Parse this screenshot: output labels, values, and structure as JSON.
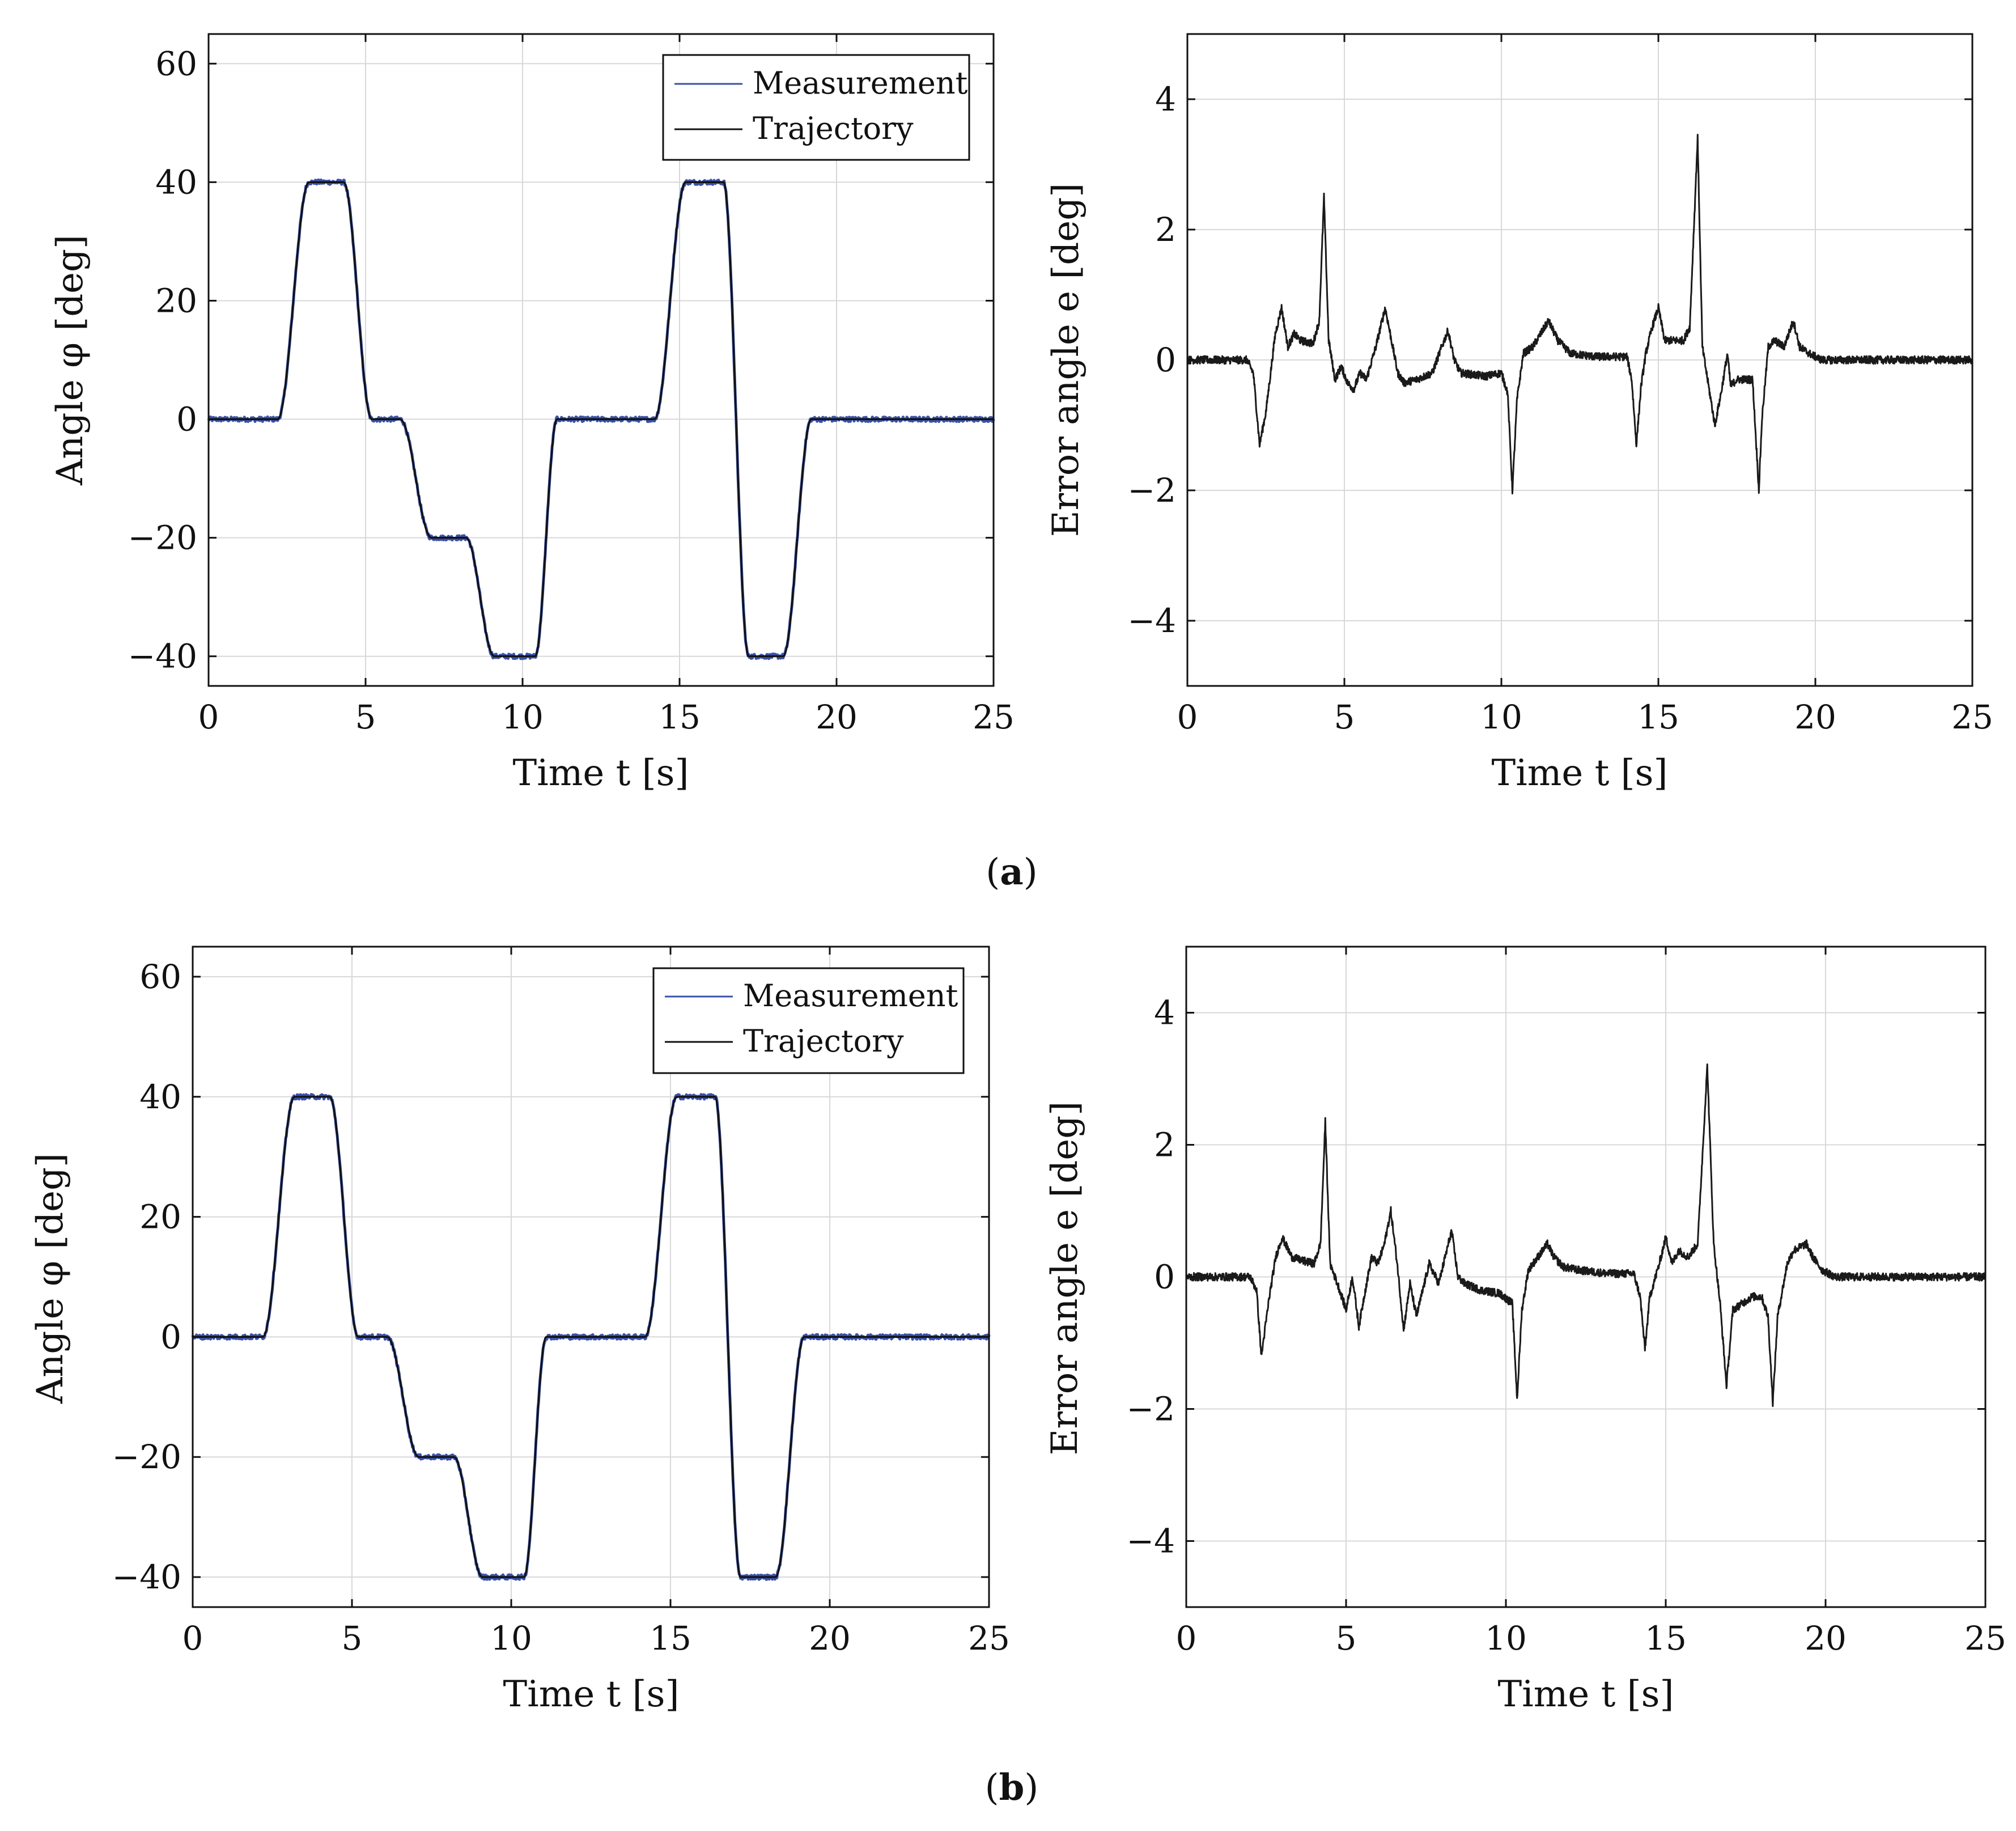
{
  "figure": {
    "caption_a": "a",
    "caption_b": "b",
    "colors": {
      "measurement": "#3a52a8",
      "trajectory": "#111111",
      "error": "#1a1a1a",
      "axes": "#111111",
      "grid": "#d8d8d8"
    }
  },
  "chart_data": [
    {
      "id": "a-angle",
      "type": "line",
      "panel": "a",
      "xlabel": "Time t [s]",
      "ylabel": "Angle φ [deg]",
      "xlim": [
        0,
        25
      ],
      "ylim": [
        -45,
        65
      ],
      "xticks": [
        0,
        5,
        10,
        15,
        20,
        25
      ],
      "yticks": [
        -40,
        -20,
        0,
        20,
        40,
        60
      ],
      "xtick_labels": [
        "0",
        "5",
        "10",
        "15",
        "20",
        "25"
      ],
      "ytick_labels": [
        "−40",
        "−20",
        "0",
        "20",
        "40",
        "60"
      ],
      "grid": true,
      "legend": {
        "position": "top-right",
        "entries": [
          "Measurement",
          "Trajectory"
        ]
      },
      "series": [
        {
          "name": "Trajectory",
          "x": [
            0,
            2.2,
            3.2,
            4.3,
            5.2,
            6.1,
            7.1,
            8.2,
            9.1,
            10.4,
            11.1,
            14.2,
            15.2,
            16.4,
            17.2,
            18.3,
            19.2,
            25
          ],
          "y": [
            0,
            0,
            40,
            40,
            0,
            0,
            -20,
            -20,
            -40,
            -40,
            0,
            0,
            40,
            40,
            -40,
            -40,
            0,
            0
          ]
        },
        {
          "name": "Measurement",
          "x": [
            0,
            2.2,
            3.2,
            4.3,
            5.2,
            6.1,
            7.1,
            8.2,
            9.1,
            10.4,
            11.1,
            14.2,
            15.2,
            16.4,
            17.2,
            18.3,
            19.2,
            25
          ],
          "y": [
            0,
            0,
            40,
            40,
            0,
            0,
            -20,
            -20,
            -40,
            -40,
            0,
            0,
            40,
            40,
            -40,
            -40,
            0,
            0
          ]
        }
      ]
    },
    {
      "id": "a-error",
      "type": "line",
      "panel": "a",
      "xlabel": "Time t [s]",
      "ylabel": "Error angle e [deg]",
      "xlim": [
        0,
        25
      ],
      "ylim": [
        -5,
        5
      ],
      "xticks": [
        0,
        5,
        10,
        15,
        20,
        25
      ],
      "yticks": [
        -4,
        -2,
        0,
        2,
        4
      ],
      "xtick_labels": [
        "0",
        "5",
        "10",
        "15",
        "20",
        "25"
      ],
      "ytick_labels": [
        "−4",
        "−2",
        "0",
        "2",
        "4"
      ],
      "grid": true,
      "series": [
        {
          "name": "Error",
          "x": [
            0,
            1.9,
            2.1,
            2.3,
            2.5,
            2.8,
            3.0,
            3.2,
            3.4,
            3.6,
            4.0,
            4.2,
            4.35,
            4.5,
            4.7,
            4.9,
            5.1,
            5.3,
            5.5,
            5.7,
            6.0,
            6.3,
            6.5,
            6.7,
            6.9,
            7.3,
            7.8,
            8.1,
            8.3,
            8.5,
            8.7,
            9.5,
            10.0,
            10.2,
            10.35,
            10.5,
            10.7,
            11.0,
            11.5,
            11.8,
            12.2,
            13.0,
            14.0,
            14.15,
            14.3,
            14.45,
            14.6,
            14.8,
            15.0,
            15.2,
            15.4,
            15.8,
            16.0,
            16.25,
            16.4,
            16.6,
            16.8,
            17.0,
            17.2,
            17.3,
            17.5,
            17.8,
            18.0,
            18.2,
            18.3,
            18.5,
            18.7,
            19.0,
            19.3,
            19.5,
            19.8,
            20.2,
            25
          ],
          "y": [
            0,
            0,
            -0.2,
            -1.3,
            -0.8,
            0.4,
            0.8,
            0.2,
            0.4,
            0.3,
            0.25,
            0.6,
            2.5,
            0.3,
            -0.3,
            -0.1,
            -0.35,
            -0.45,
            -0.2,
            -0.3,
            0.2,
            0.8,
            0.3,
            -0.2,
            -0.35,
            -0.3,
            -0.2,
            0.2,
            0.45,
            0.0,
            -0.2,
            -0.25,
            -0.2,
            -0.5,
            -2.0,
            -0.6,
            0.1,
            0.2,
            0.6,
            0.3,
            0.1,
            0.05,
            0.05,
            -0.3,
            -1.3,
            -0.4,
            0.1,
            0.5,
            0.8,
            0.3,
            0.3,
            0.3,
            0.5,
            3.4,
            0.2,
            -0.4,
            -1.0,
            -0.5,
            0.1,
            -0.4,
            -0.3,
            -0.3,
            -0.3,
            -2.0,
            -0.9,
            0.2,
            0.3,
            0.2,
            0.6,
            0.2,
            0.1,
            0,
            0
          ]
        }
      ]
    },
    {
      "id": "b-angle",
      "type": "line",
      "panel": "b",
      "xlabel": "Time t [s]",
      "ylabel": "Angle φ [deg]",
      "xlim": [
        0,
        25
      ],
      "ylim": [
        -45,
        65
      ],
      "xticks": [
        0,
        5,
        10,
        15,
        20,
        25
      ],
      "yticks": [
        -40,
        -20,
        0,
        20,
        40,
        60
      ],
      "xtick_labels": [
        "0",
        "5",
        "10",
        "15",
        "20",
        "25"
      ],
      "ytick_labels": [
        "−40",
        "−20",
        "0",
        "20",
        "40",
        "60"
      ],
      "grid": true,
      "legend": {
        "position": "top-right",
        "entries": [
          "Measurement",
          "Trajectory"
        ]
      },
      "series": [
        {
          "name": "Trajectory",
          "x": [
            0,
            2.2,
            3.2,
            4.3,
            5.2,
            6.1,
            7.1,
            8.2,
            9.1,
            10.4,
            11.1,
            14.2,
            15.2,
            16.4,
            17.2,
            18.3,
            19.2,
            25
          ],
          "y": [
            0,
            0,
            40,
            40,
            0,
            0,
            -20,
            -20,
            -40,
            -40,
            0,
            0,
            40,
            40,
            -40,
            -40,
            0,
            0
          ]
        },
        {
          "name": "Measurement",
          "x": [
            0,
            2.2,
            3.2,
            4.3,
            5.2,
            6.1,
            7.1,
            8.2,
            9.1,
            10.4,
            11.1,
            14.2,
            15.2,
            16.4,
            17.2,
            18.3,
            19.2,
            25
          ],
          "y": [
            0,
            0,
            40,
            40,
            0,
            0,
            -20,
            -20,
            -40,
            -40,
            0,
            0,
            40,
            40,
            -40,
            -40,
            0,
            0
          ]
        }
      ]
    },
    {
      "id": "b-error",
      "type": "line",
      "panel": "b",
      "xlabel": "Time t [s]",
      "ylabel": "Error angle e [deg]",
      "xlim": [
        0,
        25
      ],
      "ylim": [
        -5,
        5
      ],
      "xticks": [
        0,
        5,
        10,
        15,
        20,
        25
      ],
      "yticks": [
        -4,
        -2,
        0,
        2,
        4
      ],
      "xtick_labels": [
        "0",
        "5",
        "10",
        "15",
        "20",
        "25"
      ],
      "ytick_labels": [
        "−4",
        "−2",
        "0",
        "2",
        "4"
      ],
      "grid": true,
      "series": [
        {
          "name": "Error",
          "x": [
            0,
            2.0,
            2.2,
            2.35,
            2.6,
            2.8,
            3.0,
            3.3,
            3.6,
            4.0,
            4.2,
            4.35,
            4.5,
            4.8,
            5.0,
            5.2,
            5.4,
            5.6,
            5.8,
            6.0,
            6.2,
            6.4,
            6.6,
            6.8,
            7.0,
            7.2,
            7.4,
            7.6,
            7.9,
            8.1,
            8.3,
            8.5,
            8.7,
            9.2,
            9.8,
            10.2,
            10.35,
            10.5,
            10.7,
            11.0,
            11.3,
            11.5,
            11.8,
            12.3,
            13.2,
            14.0,
            14.2,
            14.35,
            14.5,
            14.8,
            15.0,
            15.2,
            15.4,
            15.7,
            16.0,
            16.3,
            16.5,
            16.7,
            16.9,
            17.1,
            17.4,
            17.7,
            18.0,
            18.2,
            18.35,
            18.5,
            18.8,
            19.0,
            19.4,
            19.6,
            19.9,
            20.3,
            25
          ],
          "y": [
            0,
            0,
            -0.2,
            -1.2,
            -0.3,
            0.3,
            0.6,
            0.3,
            0.25,
            0.2,
            0.5,
            2.35,
            0.2,
            -0.2,
            -0.5,
            0.0,
            -0.75,
            -0.2,
            0.3,
            0.2,
            0.5,
            1.0,
            0.2,
            -0.8,
            -0.1,
            -0.6,
            -0.2,
            0.2,
            -0.1,
            0.3,
            0.7,
            0.0,
            -0.1,
            -0.2,
            -0.25,
            -0.4,
            -1.85,
            -0.5,
            0.1,
            0.3,
            0.5,
            0.3,
            0.15,
            0.1,
            0.05,
            0.05,
            -0.3,
            -1.1,
            -0.3,
            0.2,
            0.6,
            0.2,
            0.4,
            0.3,
            0.5,
            3.2,
            0.5,
            -0.4,
            -1.65,
            -0.5,
            -0.4,
            -0.3,
            -0.3,
            -0.6,
            -1.9,
            -0.6,
            0.2,
            0.4,
            0.5,
            0.3,
            0.1,
            0,
            0
          ]
        }
      ]
    }
  ]
}
